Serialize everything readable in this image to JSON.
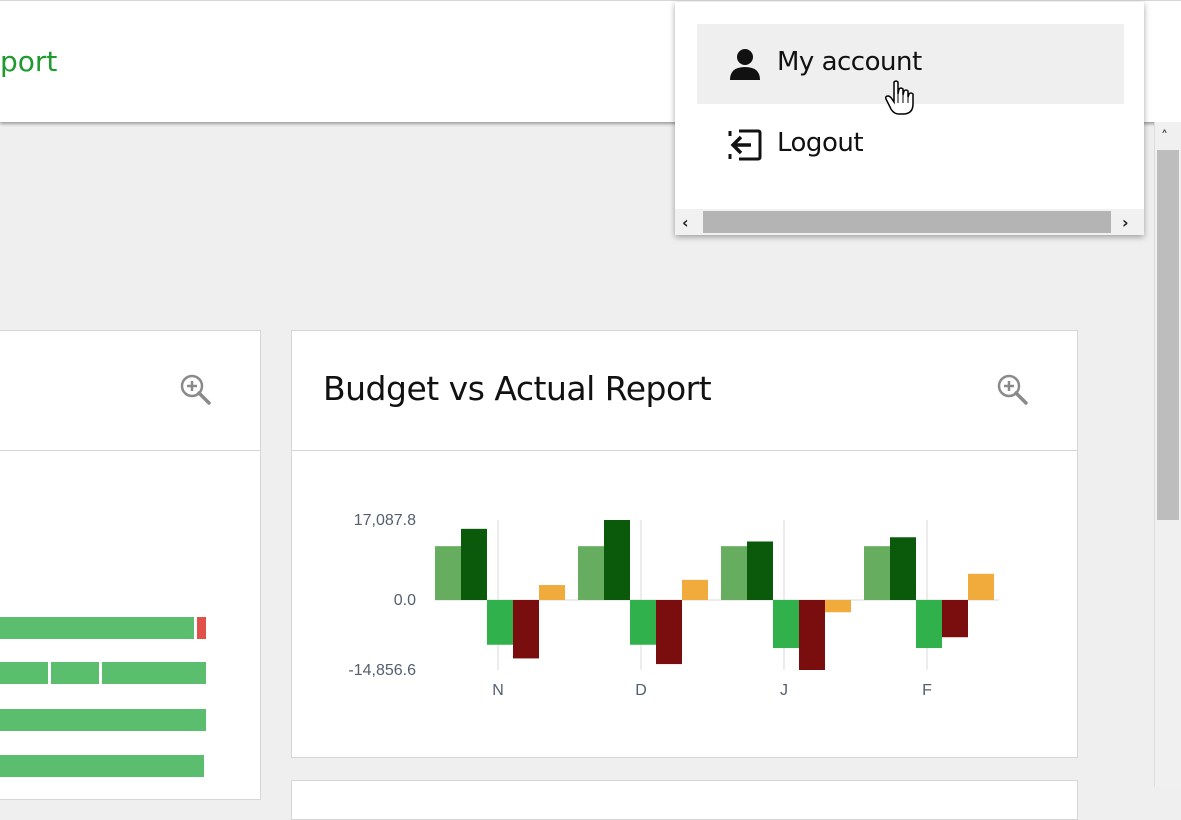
{
  "header": {
    "title_fragment": "port"
  },
  "left_card": {
    "bars": [
      {
        "segments": [
          194,
          4,
          9
        ]
      },
      {
        "segments": [
          48,
          3,
          50,
          3,
          103
        ]
      },
      {
        "segments": [
          206
        ]
      },
      {
        "segments": [
          204
        ]
      }
    ]
  },
  "budget_card": {
    "title": "Budget vs Actual Report"
  },
  "menu": {
    "items": [
      {
        "label": "My account",
        "icon": "person-icon"
      },
      {
        "label": "Logout",
        "icon": "logout-icon"
      }
    ]
  },
  "scroll": {
    "left_arrow": "‹",
    "right_arrow": "›",
    "up_arrow": "˄"
  },
  "chart_data": {
    "type": "bar",
    "categories": [
      "N",
      "D",
      "J",
      "F"
    ],
    "series": [
      {
        "color": "#66ad5f",
        "values": [
          11500,
          11500,
          11500,
          11500
        ]
      },
      {
        "color": "#0b5a0b",
        "values": [
          15200,
          17087.8,
          12500,
          13400
        ]
      },
      {
        "color": "#31b14c",
        "values": [
          -9500,
          -9500,
          -10200,
          -10200
        ]
      },
      {
        "color": "#7a0e0e",
        "values": [
          -12400,
          -13600,
          -14856.6,
          -7900
        ]
      },
      {
        "color": "#f0ab3c",
        "values": [
          3200,
          4300,
          -2600,
          5600
        ]
      }
    ],
    "y_ticks": [
      "17,087.8",
      "0.0",
      "-14,856.6"
    ],
    "ylim": [
      -14856.6,
      17087.8
    ]
  }
}
